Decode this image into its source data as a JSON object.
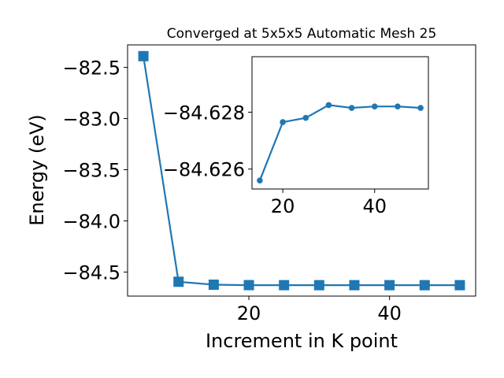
{
  "chart_data": [
    {
      "type": "line",
      "title": "Converged at 5x5x5 Automatic Mesh 25",
      "xlabel": "Increment in K point",
      "ylabel": "Energy (eV)",
      "x": [
        5,
        10,
        15,
        20,
        25,
        30,
        35,
        40,
        45,
        50
      ],
      "series": [
        {
          "values": [
            -82.39,
            -84.595,
            -84.6236,
            -84.6277,
            -84.6281,
            -84.6283,
            -84.6282,
            -84.6283,
            -84.6283,
            -84.6282
          ]
        }
      ],
      "marker": "square",
      "color": "#1f77b4",
      "xlim": [
        2.75,
        52.25
      ],
      "ylim": [
        -84.735,
        -82.28
      ],
      "xticks": [
        20,
        40
      ],
      "yticks": [
        -84.5,
        -84.0,
        -83.5,
        -83.0,
        -82.5
      ],
      "ytick_labels": [
        "−84.5",
        "−84.0",
        "−83.5",
        "−83.0",
        "−82.5"
      ],
      "grid": false,
      "legend": "none"
    },
    {
      "type": "line",
      "x": [
        15,
        20,
        25,
        30,
        35,
        40,
        45,
        50
      ],
      "series": [
        {
          "values": [
            -84.6256,
            -84.62765,
            -84.6278,
            -84.62825,
            -84.62815,
            -84.6282,
            -84.6282,
            -84.62815
          ]
        }
      ],
      "marker": "circle",
      "color": "#1f77b4",
      "xlim": [
        13.3,
        51.7
      ],
      "ylim": [
        -84.6253,
        -84.62995
      ],
      "xticks": [
        20,
        40
      ],
      "yticks": [
        -84.628,
        -84.626
      ],
      "ytick_labels": [
        "−84.628",
        "−84.626"
      ],
      "grid": false,
      "legend": "none"
    }
  ]
}
